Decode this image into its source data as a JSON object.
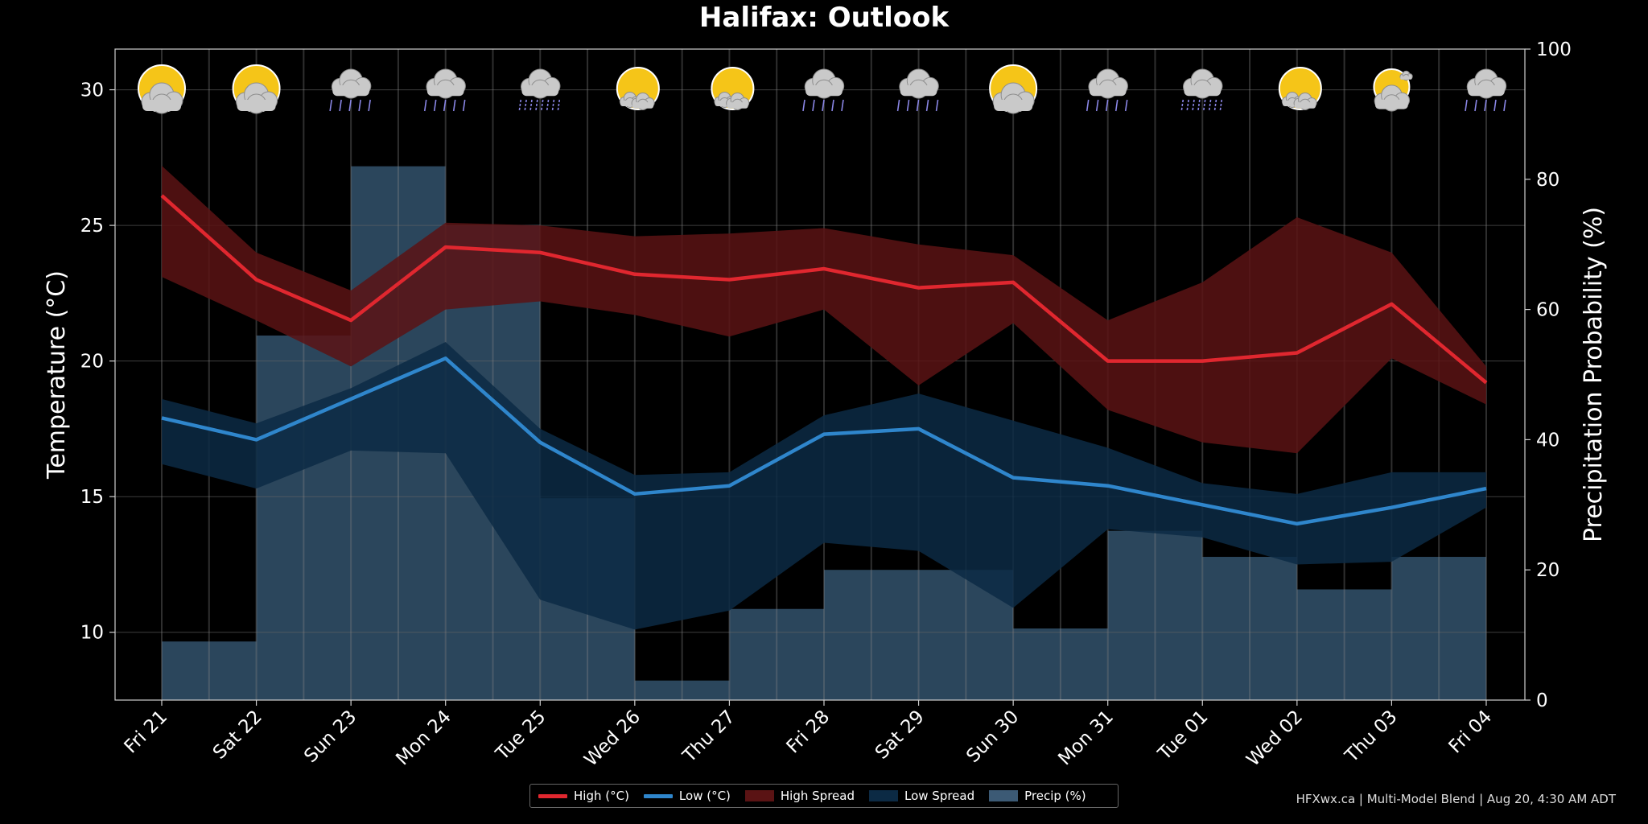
{
  "title": "Halifax: Outlook",
  "footer": "HFXwx.ca | Multi-Model Blend | Aug 20, 4:30 AM ADT",
  "colors": {
    "high": "#e0272f",
    "high_spread": "#5a1314",
    "low": "#2f86cc",
    "low_spread": "#0c2a44",
    "precip": "#4f7fa8",
    "grid": "#666666"
  },
  "chart_data": {
    "type": "line",
    "categories": [
      "Fri 21",
      "Sat 22",
      "Sun 23",
      "Mon 24",
      "Tue 25",
      "Wed 26",
      "Thu 27",
      "Fri 28",
      "Sat 29",
      "Sun 30",
      "Mon 31",
      "Tue 01",
      "Wed 02",
      "Thu 03",
      "Fri 04"
    ],
    "ylabel": "Temperature (°C)",
    "y2label": "Precipitation Probability (%)",
    "ylim": [
      7.5,
      31.5
    ],
    "y2lim": [
      0,
      100
    ],
    "yticks": [
      10,
      15,
      20,
      25,
      30
    ],
    "y2ticks": [
      0,
      20,
      40,
      60,
      80,
      100
    ],
    "grid": true,
    "legend_position": "bottom-center",
    "series": [
      {
        "name": "High (°C)",
        "values": [
          26.1,
          23.0,
          21.5,
          24.2,
          24.0,
          23.2,
          23.0,
          23.4,
          22.7,
          22.9,
          20.0,
          20.0,
          20.3,
          22.1,
          19.2
        ]
      },
      {
        "name": "Low (°C)",
        "values": [
          17.9,
          17.1,
          18.6,
          20.1,
          17.0,
          15.1,
          15.4,
          17.3,
          17.5,
          15.7,
          15.4,
          14.7,
          14.0,
          14.6,
          15.3
        ]
      },
      {
        "name": "High Spread",
        "upper": [
          27.2,
          24.0,
          22.6,
          25.1,
          25.0,
          24.6,
          24.7,
          24.9,
          24.3,
          23.9,
          21.5,
          22.9,
          25.3,
          24.0,
          19.8
        ],
        "lower": [
          23.1,
          21.5,
          19.8,
          21.9,
          22.2,
          21.7,
          20.9,
          21.9,
          19.1,
          21.4,
          18.2,
          17.0,
          16.6,
          20.1,
          18.4
        ]
      },
      {
        "name": "Low Spread",
        "upper": [
          18.6,
          17.7,
          19.0,
          20.7,
          17.5,
          15.8,
          15.9,
          18.0,
          18.8,
          17.8,
          16.8,
          15.5,
          15.1,
          15.9,
          15.9
        ],
        "lower": [
          16.2,
          15.3,
          16.7,
          16.6,
          11.2,
          10.1,
          10.8,
          13.3,
          13.0,
          10.9,
          13.8,
          13.5,
          12.5,
          12.6,
          14.6
        ]
      },
      {
        "name": "Precip (%)",
        "values": [
          9,
          56,
          82,
          73,
          31,
          3,
          14,
          20,
          20,
          11,
          26,
          22,
          17,
          22,
          22
        ]
      }
    ],
    "icons": [
      "sun-behind-cloud",
      "sun-behind-cloud",
      "rain",
      "rain",
      "showers",
      "sun-small-cloud",
      "sun-small-cloud",
      "rain",
      "rain",
      "sun-behind-cloud",
      "rain",
      "showers",
      "sun-small-cloud",
      "partly-sunny",
      "rain"
    ]
  }
}
